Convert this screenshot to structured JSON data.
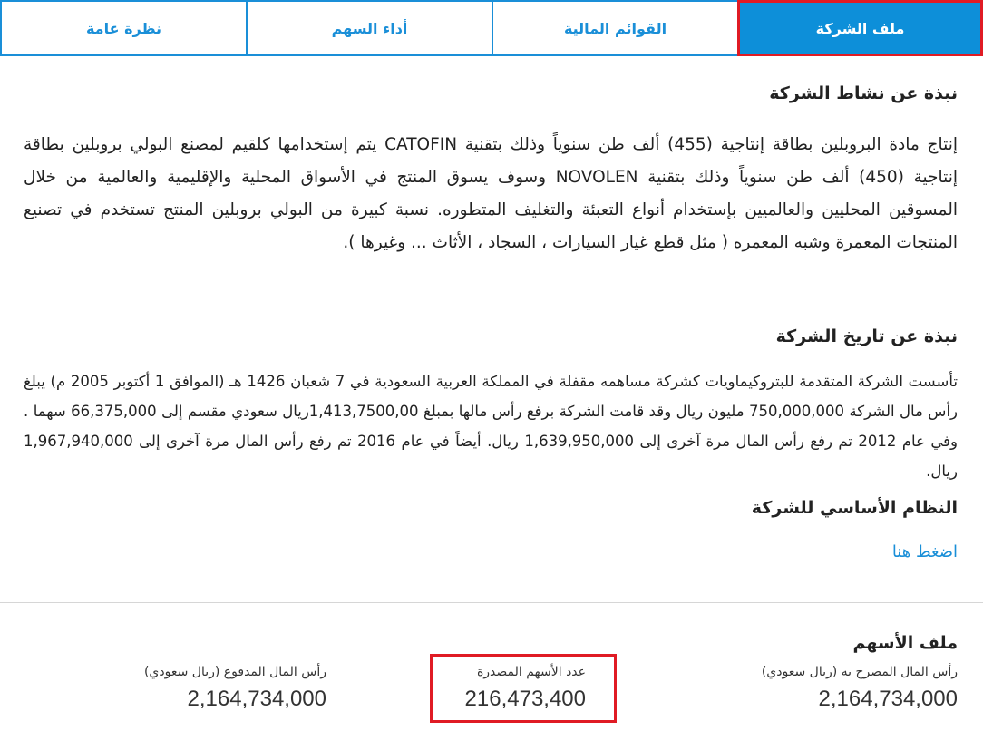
{
  "tabs": [
    {
      "label": "ملف الشركة",
      "active": true
    },
    {
      "label": "القوائم المالية",
      "active": false
    },
    {
      "label": "أداء السهم",
      "active": false
    },
    {
      "label": "نظرة عامة",
      "active": false
    }
  ],
  "activity": {
    "title": "نبذة عن نشاط الشركة",
    "text": "إنتاج مادة البروبلين بطاقة إنتاجية (455) ألف طن سنوياً وذلك بتقنية CATOFIN يتم إستخدامها كلقيم لمصنع البولي بروبلين بطاقة إنتاجية (450) ألف طن سنوياً وذلك بتقنية NOVOLEN وسوف يسوق المنتج في الأسواق المحلية والإقليمية والعالمية من خلال المسوقين المحليين والعالميين بإستخدام أنواع التعبئة والتغليف المتطوره. نسبة كبيرة من البولي بروبلين المنتج تستخدم في تصنيع المنتجات المعمرة وشبه المعمره ( مثل قطع غيار السيارات ، السجاد ، الأثاث ... وغيرها )."
  },
  "history": {
    "title": "نبذة عن تاريخ الشركة",
    "text": "تأسست الشركة المتقدمة للبتروكيماويات كشركة مساهمه مقفلة في المملكة العربية السعودية في 7 شعبان 1426 هـ (الموافق 1 أكتوبر 2005 م) يبلغ رأس مال الشركة 750,000,000 مليون ريال وقد قامت الشركة برفع رأس مالها بمبلغ 1,413,7500,00ريال سعودي مقسم إلى 66,375,000 سهما . وفي عام 2012 تم رفع رأس المال مرة آخرى إلى 1,639,950,000 ريال. أيضاً في عام 2016 تم رفع رأس المال مرة آخرى إلى 1,967,940,000 ريال."
  },
  "bylaws": {
    "title": "النظام الأساسي للشركة",
    "link": "اضغط هنا"
  },
  "shares": {
    "title": "ملف الأسهم",
    "authorized_label": "رأس المال المصرح به (ريال سعودي)",
    "authorized_value": "2,164,734,000",
    "issued_label": "عدد الأسهم المصدرة",
    "issued_value": "216,473,400",
    "paid_label": "رأس المال المدفوع (ريال سعودي)",
    "paid_value": "2,164,734,000"
  },
  "colors": {
    "accent": "#1a8fd8",
    "highlight": "#e01b24"
  }
}
